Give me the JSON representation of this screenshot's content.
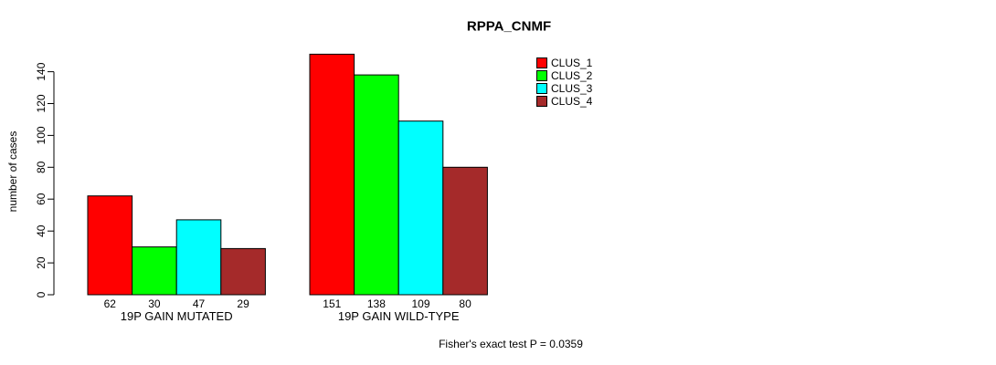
{
  "figure": {
    "title": "RPPA_CNMF",
    "annotation": "Fisher's exact test P = 0.0359"
  },
  "chart_data": {
    "type": "bar",
    "title": "RPPA_CNMF",
    "xlabel": "",
    "ylabel": "number of cases",
    "categories": [
      "19P GAIN MUTATED",
      "19P GAIN WILD-TYPE"
    ],
    "series": [
      {
        "name": "CLUS_1",
        "color": "#FF0000",
        "values": [
          62,
          151
        ]
      },
      {
        "name": "CLUS_2",
        "color": "#00FF00",
        "values": [
          30,
          138
        ]
      },
      {
        "name": "CLUS_3",
        "color": "#00FFFF",
        "values": [
          47,
          109
        ]
      },
      {
        "name": "CLUS_4",
        "color": "#A52A2A",
        "values": [
          29,
          80
        ]
      }
    ],
    "yticks": [
      0,
      20,
      40,
      60,
      80,
      100,
      120,
      140
    ],
    "ylim": [
      0,
      151
    ],
    "grid": false,
    "legend_position": "top-right",
    "bar_value_labels_shown": true,
    "annotation": "Fisher's exact test P = 0.0359",
    "axis_color": "#000000",
    "bar_border_color": "#000000"
  }
}
